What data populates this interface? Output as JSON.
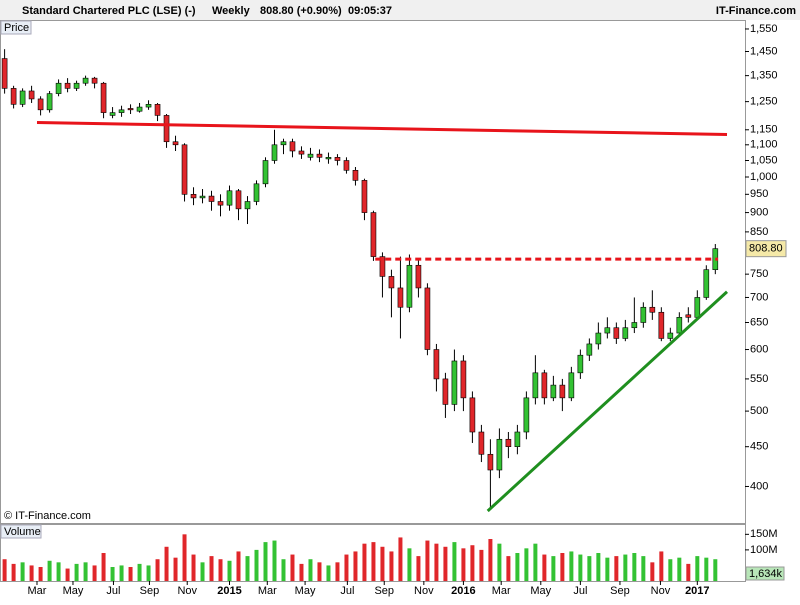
{
  "header": {
    "name": "Standard Chartered PLC (LSE) (-)",
    "interval": "Weekly",
    "last": "808.80 (+0.90%)",
    "time": "09:05:37",
    "site": "IT-Finance.com"
  },
  "chart_data": {
    "type": "candlestick",
    "panel_label": "Price",
    "copyright": "© IT-Finance.com",
    "log_scale": true,
    "up_color": "#33c233",
    "down_color": "#e0262a",
    "candles": [
      [
        1420,
        1460,
        1280,
        1300
      ],
      [
        1300,
        1310,
        1225,
        1240
      ],
      [
        1240,
        1300,
        1230,
        1290
      ],
      [
        1290,
        1310,
        1245,
        1260
      ],
      [
        1260,
        1270,
        1200,
        1220
      ],
      [
        1220,
        1290,
        1210,
        1280
      ],
      [
        1280,
        1335,
        1270,
        1320
      ],
      [
        1320,
        1340,
        1285,
        1300
      ],
      [
        1300,
        1330,
        1290,
        1320
      ],
      [
        1320,
        1350,
        1310,
        1340
      ],
      [
        1340,
        1345,
        1300,
        1320
      ],
      [
        1320,
        1325,
        1190,
        1210
      ],
      [
        1200,
        1230,
        1190,
        1210
      ],
      [
        1210,
        1235,
        1195,
        1220
      ],
      [
        1225,
        1240,
        1205,
        1220
      ],
      [
        1215,
        1245,
        1210,
        1230
      ],
      [
        1230,
        1255,
        1220,
        1240
      ],
      [
        1240,
        1245,
        1180,
        1200
      ],
      [
        1200,
        1205,
        1090,
        1110
      ],
      [
        1110,
        1130,
        1080,
        1100
      ],
      [
        1100,
        1105,
        930,
        950
      ],
      [
        950,
        970,
        920,
        940
      ],
      [
        940,
        965,
        925,
        945
      ],
      [
        945,
        960,
        905,
        930
      ],
      [
        930,
        950,
        890,
        920
      ],
      [
        920,
        975,
        905,
        960
      ],
      [
        960,
        965,
        880,
        910
      ],
      [
        910,
        945,
        870,
        930
      ],
      [
        930,
        990,
        920,
        980
      ],
      [
        980,
        1060,
        970,
        1050
      ],
      [
        1050,
        1150,
        1040,
        1100
      ],
      [
        1100,
        1120,
        1070,
        1110
      ],
      [
        1110,
        1120,
        1060,
        1080
      ],
      [
        1080,
        1095,
        1055,
        1070
      ],
      [
        1060,
        1090,
        1050,
        1070
      ],
      [
        1070,
        1085,
        1045,
        1060
      ],
      [
        1055,
        1075,
        1040,
        1060
      ],
      [
        1060,
        1070,
        1035,
        1050
      ],
      [
        1050,
        1060,
        1010,
        1020
      ],
      [
        1020,
        1030,
        975,
        990
      ],
      [
        990,
        995,
        880,
        900
      ],
      [
        900,
        905,
        780,
        790
      ],
      [
        790,
        800,
        700,
        745
      ],
      [
        745,
        760,
        660,
        720
      ],
      [
        720,
        790,
        620,
        680
      ],
      [
        680,
        795,
        670,
        770
      ],
      [
        770,
        785,
        700,
        720
      ],
      [
        720,
        730,
        590,
        600
      ],
      [
        600,
        610,
        530,
        550
      ],
      [
        550,
        560,
        490,
        510
      ],
      [
        510,
        600,
        500,
        580
      ],
      [
        580,
        590,
        500,
        520
      ],
      [
        520,
        530,
        455,
        470
      ],
      [
        470,
        480,
        430,
        440
      ],
      [
        440,
        460,
        375,
        420
      ],
      [
        420,
        475,
        410,
        460
      ],
      [
        460,
        470,
        435,
        450
      ],
      [
        450,
        480,
        440,
        470
      ],
      [
        470,
        530,
        460,
        520
      ],
      [
        520,
        590,
        510,
        560
      ],
      [
        560,
        565,
        510,
        520
      ],
      [
        520,
        555,
        515,
        540
      ],
      [
        540,
        550,
        500,
        520
      ],
      [
        520,
        570,
        515,
        560
      ],
      [
        560,
        600,
        550,
        590
      ],
      [
        590,
        620,
        580,
        610
      ],
      [
        610,
        650,
        600,
        630
      ],
      [
        630,
        660,
        620,
        640
      ],
      [
        640,
        650,
        610,
        620
      ],
      [
        620,
        655,
        615,
        640
      ],
      [
        640,
        700,
        630,
        650
      ],
      [
        650,
        690,
        640,
        680
      ],
      [
        680,
        715,
        655,
        670
      ],
      [
        670,
        680,
        615,
        620
      ],
      [
        620,
        640,
        615,
        630
      ],
      [
        630,
        670,
        625,
        660
      ],
      [
        665,
        680,
        650,
        660
      ],
      [
        660,
        715,
        655,
        700
      ],
      [
        700,
        770,
        695,
        760
      ],
      [
        760,
        820,
        750,
        808.8
      ]
    ],
    "xlim": [
      -0.4,
      82.3
    ],
    "xticks": [
      {
        "value": 3.6,
        "label": "Mar"
      },
      {
        "value": 7.6,
        "label": "May"
      },
      {
        "value": 12.1,
        "label": "Jul"
      },
      {
        "value": 16.1,
        "label": "Sep"
      },
      {
        "value": 20.3,
        "label": "Nov"
      },
      {
        "value": 25,
        "label": "2015"
      },
      {
        "value": 29.2,
        "label": "Mar"
      },
      {
        "value": 33.4,
        "label": "May"
      },
      {
        "value": 38.1,
        "label": "Jul"
      },
      {
        "value": 42.2,
        "label": "Sep"
      },
      {
        "value": 46.6,
        "label": "Nov"
      },
      {
        "value": 51,
        "label": "2016"
      },
      {
        "value": 55.2,
        "label": "Mar"
      },
      {
        "value": 59.6,
        "label": "May"
      },
      {
        "value": 64,
        "label": "Jul"
      },
      {
        "value": 68.4,
        "label": "Sep"
      },
      {
        "value": 72.9,
        "label": "Nov"
      },
      {
        "value": 77,
        "label": "2017"
      }
    ],
    "ylim": [
      359,
      1587
    ],
    "yticks": [
      400,
      450,
      500,
      550,
      600,
      650,
      700,
      750,
      850,
      900,
      950,
      {
        "value": 1000,
        "label": "1,000"
      },
      {
        "value": 1050,
        "label": "1,050"
      },
      {
        "value": 1100,
        "label": "1,100"
      },
      {
        "value": 1150,
        "label": "1,150"
      },
      {
        "value": 1250,
        "label": "1,250"
      },
      {
        "value": 1350,
        "label": "1,350"
      },
      {
        "value": 1450,
        "label": "1,450"
      },
      {
        "value": 1550,
        "label": "1,550"
      }
    ],
    "price_tag": {
      "value": 808.8,
      "label": "808.80"
    },
    "trendlines": [
      {
        "color": "#e8141b",
        "dashed": false,
        "points": [
          [
            3.6,
            1175
          ],
          [
            80.3,
            1134
          ]
        ]
      },
      {
        "color": "#e8141b",
        "dashed": true,
        "points": [
          [
            41.2,
            784
          ],
          [
            79.3,
            784
          ]
        ]
      },
      {
        "color": "#1f8f1f",
        "dashed": false,
        "points": [
          [
            53.7,
            372
          ],
          [
            80.3,
            712
          ]
        ]
      }
    ],
    "volume": {
      "label": "Volume",
      "values": [
        70,
        55,
        60,
        50,
        45,
        65,
        60,
        40,
        55,
        60,
        50,
        90,
        45,
        50,
        45,
        55,
        50,
        70,
        110,
        75,
        150,
        85,
        60,
        80,
        70,
        65,
        95,
        80,
        100,
        125,
        130,
        70,
        85,
        55,
        70,
        60,
        50,
        60,
        85,
        95,
        120,
        125,
        110,
        95,
        140,
        105,
        80,
        130,
        120,
        110,
        125,
        105,
        115,
        100,
        135,
        120,
        80,
        90,
        105,
        120,
        85,
        80,
        90,
        95,
        85,
        80,
        90,
        75,
        80,
        85,
        90,
        80,
        60,
        95,
        70,
        75,
        55,
        80,
        75,
        70
      ],
      "ylim": [
        0,
        180
      ],
      "yticks": [
        {
          "value": 150,
          "label": "150M"
        },
        {
          "value": 100,
          "label": "100M"
        }
      ],
      "tag": {
        "value": 1.634,
        "label": "1,634k"
      }
    }
  }
}
